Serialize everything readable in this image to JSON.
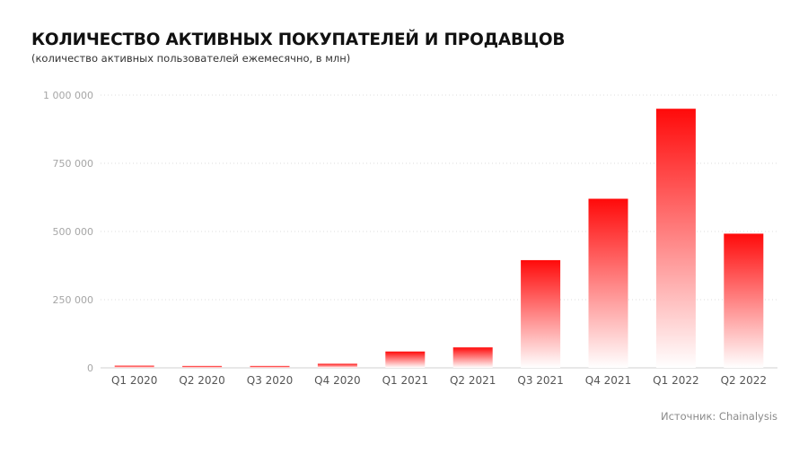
{
  "title": "КОЛИЧЕСТВО АКТИВНЫХ ПОКУПАТЕЛЕЙ И ПРОДАВЦОВ",
  "subtitle": "(количество активных пользователей ежемесячно, в млн)",
  "source": "Источник: Chainalysis",
  "colors": {
    "bar_top": "#ff0a0a",
    "bar_bottom": "#ffffff",
    "grid": "#dcdcdc",
    "axis": "#d0d0d0"
  },
  "chart_data": {
    "type": "bar",
    "title": "КОЛИЧЕСТВО АКТИВНЫХ ПОКУПАТЕЛЕЙ И ПРОДАВЦОВ",
    "subtitle": "(количество активных пользователей ежемесячно, в млн)",
    "categories": [
      "Q1 2020",
      "Q2 2020",
      "Q3 2020",
      "Q4 2020",
      "Q1 2021",
      "Q2 2021",
      "Q3 2021",
      "Q4 2021",
      "Q1 2022",
      "Q2 2022"
    ],
    "values": [
      8000,
      7000,
      7000,
      15000,
      60000,
      75000,
      395000,
      620000,
      950000,
      492000
    ],
    "ylim": [
      0,
      1000000
    ],
    "yticks": [
      0,
      250000,
      500000,
      750000,
      1000000
    ],
    "ytick_labels": [
      "0",
      "250 000",
      "500 000",
      "750 000",
      "1 000 000"
    ],
    "grid": true,
    "grid_style": "dotted",
    "legend": "none"
  }
}
